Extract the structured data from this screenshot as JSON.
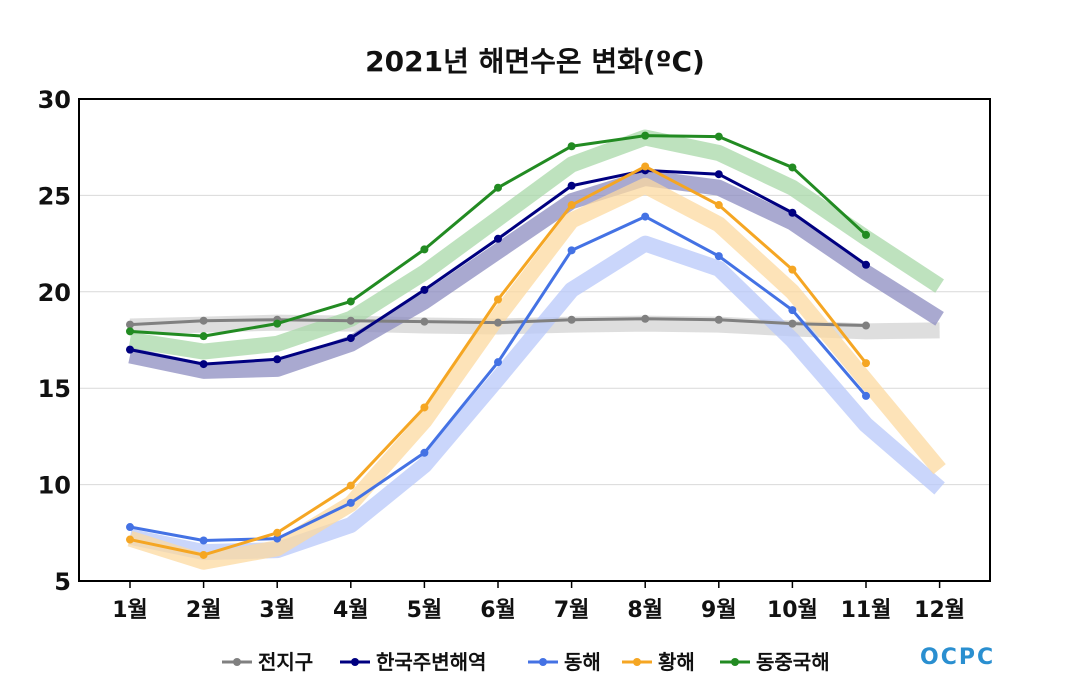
{
  "chart_data": {
    "type": "line",
    "title": "2021년 해면수온 변화(ºC)",
    "xlabel": "",
    "ylabel": "",
    "categories": [
      "1월",
      "2월",
      "3월",
      "4월",
      "5월",
      "6월",
      "7월",
      "8월",
      "9월",
      "10월",
      "11월",
      "12월"
    ],
    "ylim": [
      5,
      30
    ],
    "yticks": [
      "5",
      "10",
      "15",
      "20",
      "25",
      "30"
    ],
    "grid": true,
    "legend_position": "bottom",
    "series": [
      {
        "name": "전지구",
        "color": "#808080",
        "band_color": "#d3d3d3",
        "values": [
          18.3,
          18.5,
          18.55,
          18.5,
          18.45,
          18.4,
          18.55,
          18.6,
          18.55,
          18.35,
          18.25,
          null
        ],
        "normal": [
          18.2,
          18.3,
          18.4,
          18.35,
          18.25,
          18.2,
          18.3,
          18.35,
          18.3,
          18.1,
          17.95,
          18.0
        ]
      },
      {
        "name": "한국주변해역",
        "color": "#000080",
        "band_color": "#8c8cc0",
        "values": [
          17.0,
          16.25,
          16.5,
          17.6,
          20.1,
          22.75,
          25.5,
          26.3,
          26.1,
          24.1,
          21.4,
          null
        ],
        "normal": [
          16.7,
          15.9,
          16.0,
          17.3,
          19.5,
          22.1,
          24.7,
          25.9,
          25.4,
          23.6,
          21.0,
          18.6
        ]
      },
      {
        "name": "동해",
        "color": "#4472e4",
        "band_color": "#b8c8fa",
        "values": [
          7.8,
          7.1,
          7.2,
          9.05,
          11.65,
          16.35,
          22.15,
          23.9,
          21.85,
          19.05,
          14.6,
          null
        ],
        "normal": [
          7.3,
          6.5,
          6.6,
          7.9,
          11.0,
          15.5,
          20.1,
          22.5,
          21.2,
          17.5,
          13.1,
          9.8
        ]
      },
      {
        "name": "황해",
        "color": "#f5a623",
        "band_color": "#fcd9a0",
        "values": [
          7.15,
          6.35,
          7.5,
          9.95,
          14.0,
          19.6,
          24.5,
          26.5,
          24.5,
          21.15,
          16.3,
          null
        ],
        "normal": [
          7.2,
          6.0,
          6.7,
          9.0,
          13.3,
          18.7,
          23.7,
          25.5,
          23.5,
          20.0,
          15.4,
          10.8
        ]
      },
      {
        "name": "동중국해",
        "color": "#228b22",
        "band_color": "#a8d8a8",
        "values": [
          17.95,
          17.7,
          18.35,
          19.5,
          22.2,
          25.4,
          27.55,
          28.1,
          28.05,
          26.45,
          22.95,
          null
        ],
        "normal": [
          17.5,
          16.9,
          17.3,
          18.6,
          21.0,
          23.8,
          26.6,
          28.0,
          27.2,
          25.4,
          22.8,
          20.3
        ]
      }
    ]
  },
  "logo": {
    "text": "OCPC"
  }
}
